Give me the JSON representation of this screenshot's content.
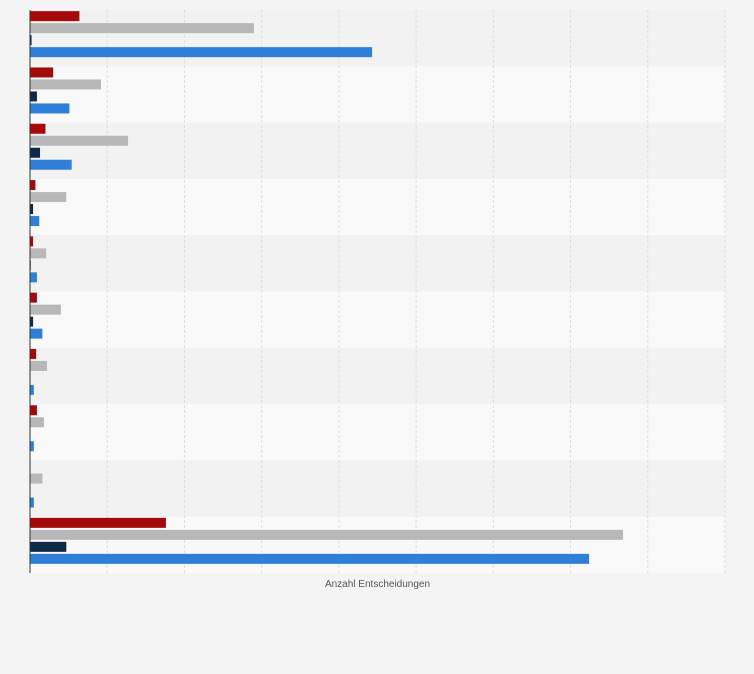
{
  "chart_data": {
    "type": "bar",
    "orientation": "horizontal",
    "title": "",
    "xlabel": "Anzahl Entscheidungen",
    "ylabel": "",
    "xlim": [
      0,
      900
    ],
    "grid": true,
    "legend": "none",
    "categories": [
      "",
      "",
      "",
      "",
      "",
      "",
      "",
      "",
      "",
      ""
    ],
    "series": [
      {
        "color": "#a50a0a",
        "values": [
          64,
          30,
          20,
          7,
          4,
          9,
          8,
          9,
          0,
          176
        ]
      },
      {
        "color": "#b8b8b8",
        "values": [
          290,
          92,
          127,
          47,
          21,
          40,
          22,
          18,
          16,
          768
        ]
      },
      {
        "color": "#0f2a47",
        "values": [
          2,
          9,
          13,
          4,
          1,
          4,
          0,
          0,
          0,
          47
        ]
      },
      {
        "color": "#2f7ed8",
        "values": [
          443,
          51,
          54,
          12,
          9,
          16,
          5,
          5,
          5,
          724
        ]
      }
    ]
  }
}
